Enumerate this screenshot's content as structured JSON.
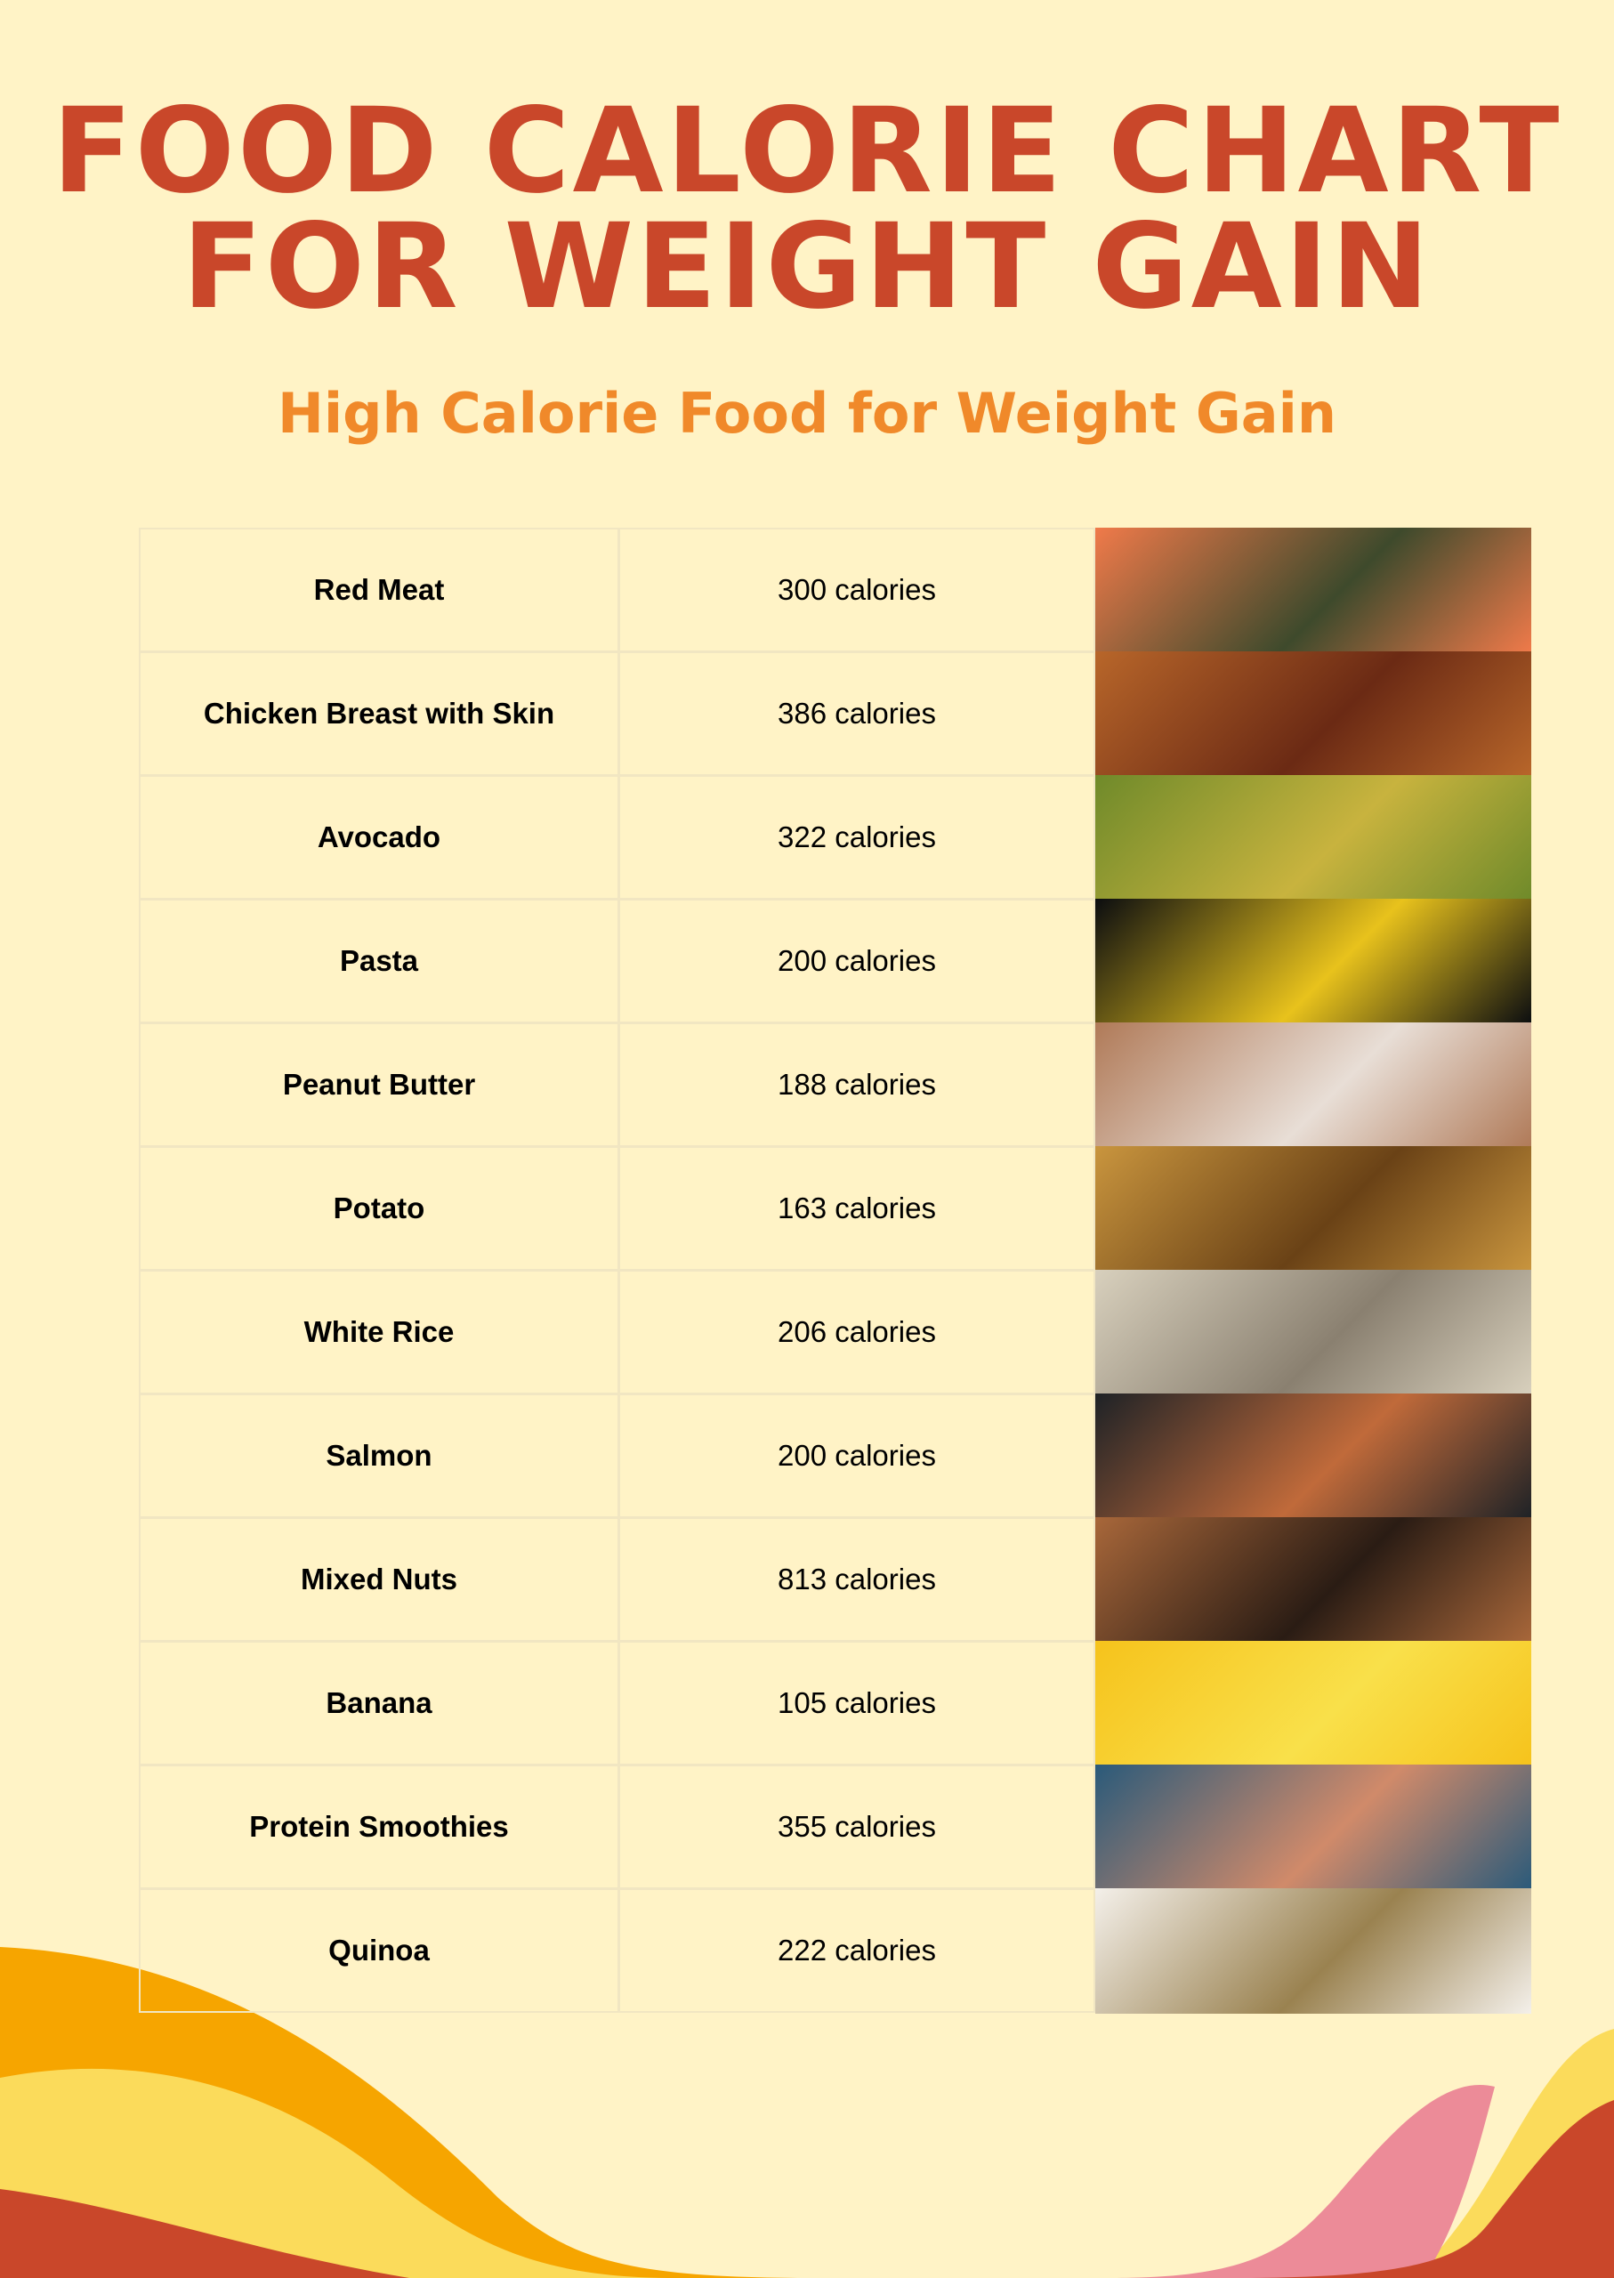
{
  "title_line1": "FOOD CALORIE CHART",
  "title_line2": "FOR WEIGHT GAIN",
  "subtitle": "High Calorie Food for Weight Gain",
  "colors": {
    "background": "#fff3c6",
    "title": "#c9472a",
    "subtitle": "#f0892a",
    "wave_orange": "#f6a500",
    "wave_yellow": "#fbdb5b",
    "wave_red": "#c9472a",
    "wave_pink": "#ec8b98"
  },
  "foods": [
    {
      "name": "Red Meat",
      "calories": "300 calories",
      "image": [
        "#f07a4a",
        "#3e4a2c"
      ]
    },
    {
      "name": "Chicken Breast with Skin",
      "calories": "386 calories",
      "image": [
        "#b8662a",
        "#6b2a14"
      ]
    },
    {
      "name": "Avocado",
      "calories": "322 calories",
      "image": [
        "#6f8a2a",
        "#c8b33e"
      ]
    },
    {
      "name": "Pasta",
      "calories": "200 calories",
      "image": [
        "#0b0d10",
        "#e8c21c"
      ]
    },
    {
      "name": "Peanut Butter",
      "calories": "188 calories",
      "image": [
        "#b07a58",
        "#e8ded6"
      ]
    },
    {
      "name": "Potato",
      "calories": "163 calories",
      "image": [
        "#c9953e",
        "#6a4216"
      ]
    },
    {
      "name": "White Rice",
      "calories": "206 calories",
      "image": [
        "#d8d0bd",
        "#8a8070"
      ]
    },
    {
      "name": "Salmon",
      "calories": "200 calories",
      "image": [
        "#1e2226",
        "#c06a3a"
      ]
    },
    {
      "name": "Mixed Nuts",
      "calories": "813 calories",
      "image": [
        "#a8673a",
        "#2a1c14"
      ]
    },
    {
      "name": "Banana",
      "calories": "105 calories",
      "image": [
        "#f6c31c",
        "#f9e04a"
      ]
    },
    {
      "name": "Protein Smoothies",
      "calories": "355 calories",
      "image": [
        "#2a5a7a",
        "#d08a6a"
      ]
    },
    {
      "name": "Quinoa",
      "calories": "222 calories",
      "image": [
        "#f4f0ea",
        "#9a8250"
      ]
    }
  ]
}
